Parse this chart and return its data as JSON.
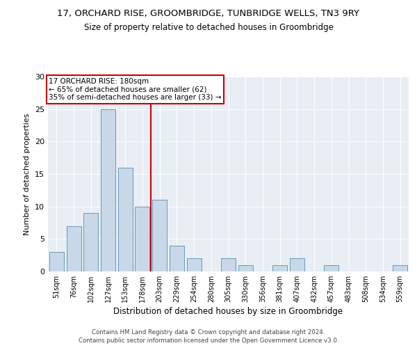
{
  "title1": "17, ORCHARD RISE, GROOMBRIDGE, TUNBRIDGE WELLS, TN3 9RY",
  "title2": "Size of property relative to detached houses in Groombridge",
  "xlabel": "Distribution of detached houses by size in Groombridge",
  "ylabel": "Number of detached properties",
  "categories": [
    "51sqm",
    "76sqm",
    "102sqm",
    "127sqm",
    "153sqm",
    "178sqm",
    "203sqm",
    "229sqm",
    "254sqm",
    "280sqm",
    "305sqm",
    "330sqm",
    "356sqm",
    "381sqm",
    "407sqm",
    "432sqm",
    "457sqm",
    "483sqm",
    "508sqm",
    "534sqm",
    "559sqm"
  ],
  "values": [
    3,
    7,
    9,
    25,
    16,
    10,
    11,
    4,
    2,
    0,
    2,
    1,
    0,
    1,
    2,
    0,
    1,
    0,
    0,
    0,
    1
  ],
  "bar_color": "#c8d8e8",
  "bar_edge_color": "#6699bb",
  "ref_line_x": 5.5,
  "annotation_text": "17 ORCHARD RISE: 180sqm\n← 65% of detached houses are smaller (62)\n35% of semi-detached houses are larger (33) →",
  "annotation_box_color": "#ffffff",
  "annotation_box_edge": "#cc0000",
  "ylim": [
    0,
    30
  ],
  "yticks": [
    0,
    5,
    10,
    15,
    20,
    25,
    30
  ],
  "bg_color": "#e8eef4",
  "fig_bg": "#ffffff",
  "footer1": "Contains HM Land Registry data © Crown copyright and database right 2024.",
  "footer2": "Contains public sector information licensed under the Open Government Licence v3.0."
}
